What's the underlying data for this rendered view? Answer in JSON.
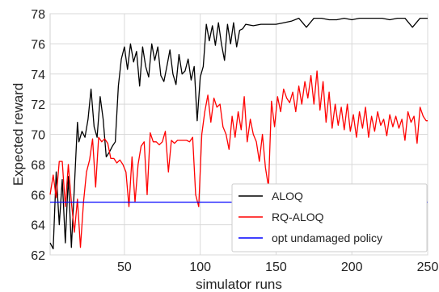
{
  "chart_data": {
    "type": "line",
    "xlabel": "simulator runs",
    "ylabel": "Expected reward",
    "xlim": [
      1,
      250
    ],
    "ylim": [
      62,
      78
    ],
    "xticks": [
      50,
      100,
      150,
      200,
      250
    ],
    "yticks": [
      62,
      64,
      66,
      68,
      70,
      72,
      74,
      76,
      78
    ],
    "grid": true,
    "legend_position": "bottom-right",
    "series": [
      {
        "name": "ALOQ",
        "color": "#000000",
        "x": [
          1,
          3,
          5,
          7,
          9,
          11,
          13,
          15,
          17,
          19,
          20,
          22,
          24,
          26,
          28,
          30,
          32,
          34,
          36,
          38,
          40,
          42,
          44,
          46,
          48,
          50,
          52,
          54,
          56,
          58,
          60,
          62,
          64,
          66,
          68,
          70,
          72,
          74,
          76,
          78,
          80,
          82,
          84,
          86,
          88,
          90,
          92,
          94,
          96,
          98,
          100,
          102,
          104,
          106,
          108,
          110,
          112,
          114,
          116,
          118,
          120,
          122,
          124,
          126,
          128,
          130,
          135,
          140,
          145,
          150,
          155,
          160,
          165,
          170,
          175,
          180,
          185,
          190,
          195,
          200,
          205,
          210,
          215,
          220,
          225,
          230,
          235,
          240,
          245,
          250
        ],
        "values": [
          62.8,
          62.4,
          67.5,
          64.0,
          67.0,
          62.8,
          67.2,
          62.5,
          66.5,
          70.8,
          69.5,
          70.2,
          69.8,
          71.0,
          73.0,
          70.5,
          69.8,
          72.5,
          71.0,
          68.5,
          68.8,
          69.2,
          69.5,
          73.2,
          75.0,
          75.8,
          74.3,
          76.0,
          74.8,
          75.5,
          73.2,
          75.8,
          74.5,
          73.8,
          76.0,
          74.9,
          75.8,
          73.9,
          73.5,
          74.5,
          75.6,
          74.0,
          73.3,
          75.3,
          74.0,
          74.2,
          75.0,
          73.6,
          74.5,
          70.9,
          73.8,
          74.5,
          77.3,
          76.2,
          77.2,
          75.9,
          77.4,
          76.0,
          74.9,
          77.3,
          76.0,
          77.4,
          75.8,
          76.9,
          77.0,
          77.3,
          77.2,
          77.3,
          77.3,
          77.3,
          77.4,
          77.5,
          77.7,
          77.1,
          77.7,
          77.7,
          77.6,
          77.6,
          77.7,
          77.6,
          77.7,
          77.7,
          77.7,
          77.7,
          77.6,
          77.7,
          77.7,
          77.1,
          77.7,
          77.7
        ]
      },
      {
        "name": "RQ-ALOQ",
        "color": "#ff0000",
        "x": [
          1,
          3,
          5,
          7,
          9,
          11,
          13,
          15,
          17,
          19,
          21,
          23,
          25,
          27,
          29,
          31,
          33,
          35,
          37,
          39,
          41,
          43,
          45,
          47,
          49,
          51,
          53,
          55,
          57,
          59,
          61,
          63,
          65,
          67,
          69,
          71,
          73,
          75,
          77,
          79,
          81,
          83,
          85,
          87,
          89,
          91,
          93,
          95,
          97,
          99,
          101,
          103,
          105,
          107,
          109,
          111,
          113,
          115,
          117,
          119,
          121,
          123,
          125,
          127,
          129,
          131,
          133,
          135,
          137,
          139,
          141,
          143,
          145,
          147,
          149,
          151,
          153,
          155,
          157,
          159,
          161,
          163,
          165,
          167,
          169,
          171,
          173,
          175,
          177,
          179,
          181,
          183,
          185,
          187,
          189,
          191,
          193,
          195,
          197,
          199,
          201,
          203,
          205,
          207,
          209,
          211,
          213,
          215,
          217,
          219,
          221,
          223,
          225,
          227,
          229,
          231,
          233,
          235,
          237,
          239,
          241,
          243,
          245,
          247,
          249,
          250
        ],
        "values": [
          66.0,
          67.3,
          65.8,
          68.2,
          68.2,
          65.2,
          68.0,
          65.5,
          63.5,
          65.7,
          62.5,
          65.5,
          67.5,
          68.3,
          69.7,
          66.5,
          69.8,
          69.5,
          69.7,
          69.4,
          68.4,
          68.4,
          68.1,
          68.3,
          68.0,
          67.5,
          65.2,
          68.5,
          65.5,
          68.0,
          69.2,
          69.5,
          66.0,
          70.1,
          69.5,
          69.5,
          69.3,
          69.5,
          70.2,
          67.5,
          69.6,
          69.4,
          69.6,
          69.6,
          69.6,
          69.6,
          69.5,
          69.8,
          66.0,
          65.2,
          70.0,
          71.5,
          72.6,
          70.8,
          72.4,
          71.8,
          72.0,
          70.5,
          70.0,
          69.0,
          71.2,
          69.8,
          71.5,
          70.3,
          72.5,
          69.5,
          71.0,
          70.0,
          69.5,
          68.2,
          70.0,
          67.8,
          66.5,
          72.2,
          70.5,
          72.5,
          71.5,
          73.0,
          72.4,
          72.1,
          72.8,
          71.5,
          73.2,
          72.0,
          73.5,
          72.4,
          73.9,
          72.0,
          74.2,
          71.6,
          73.5,
          70.8,
          72.8,
          70.4,
          72.0,
          70.6,
          71.8,
          70.3,
          72.0,
          70.2,
          71.3,
          69.8,
          71.5,
          70.4,
          71.8,
          69.8,
          71.2,
          70.2,
          71.5,
          70.6,
          71.0,
          69.9,
          71.3,
          70.5,
          71.2,
          70.4,
          71.0,
          69.6,
          71.5,
          70.8,
          71.2,
          69.4,
          71.8,
          71.2,
          70.9,
          70.9
        ]
      },
      {
        "name": "opt undamaged policy",
        "color": "#0000ff",
        "x": [
          1,
          250
        ],
        "values": [
          65.5,
          65.5
        ]
      }
    ]
  }
}
